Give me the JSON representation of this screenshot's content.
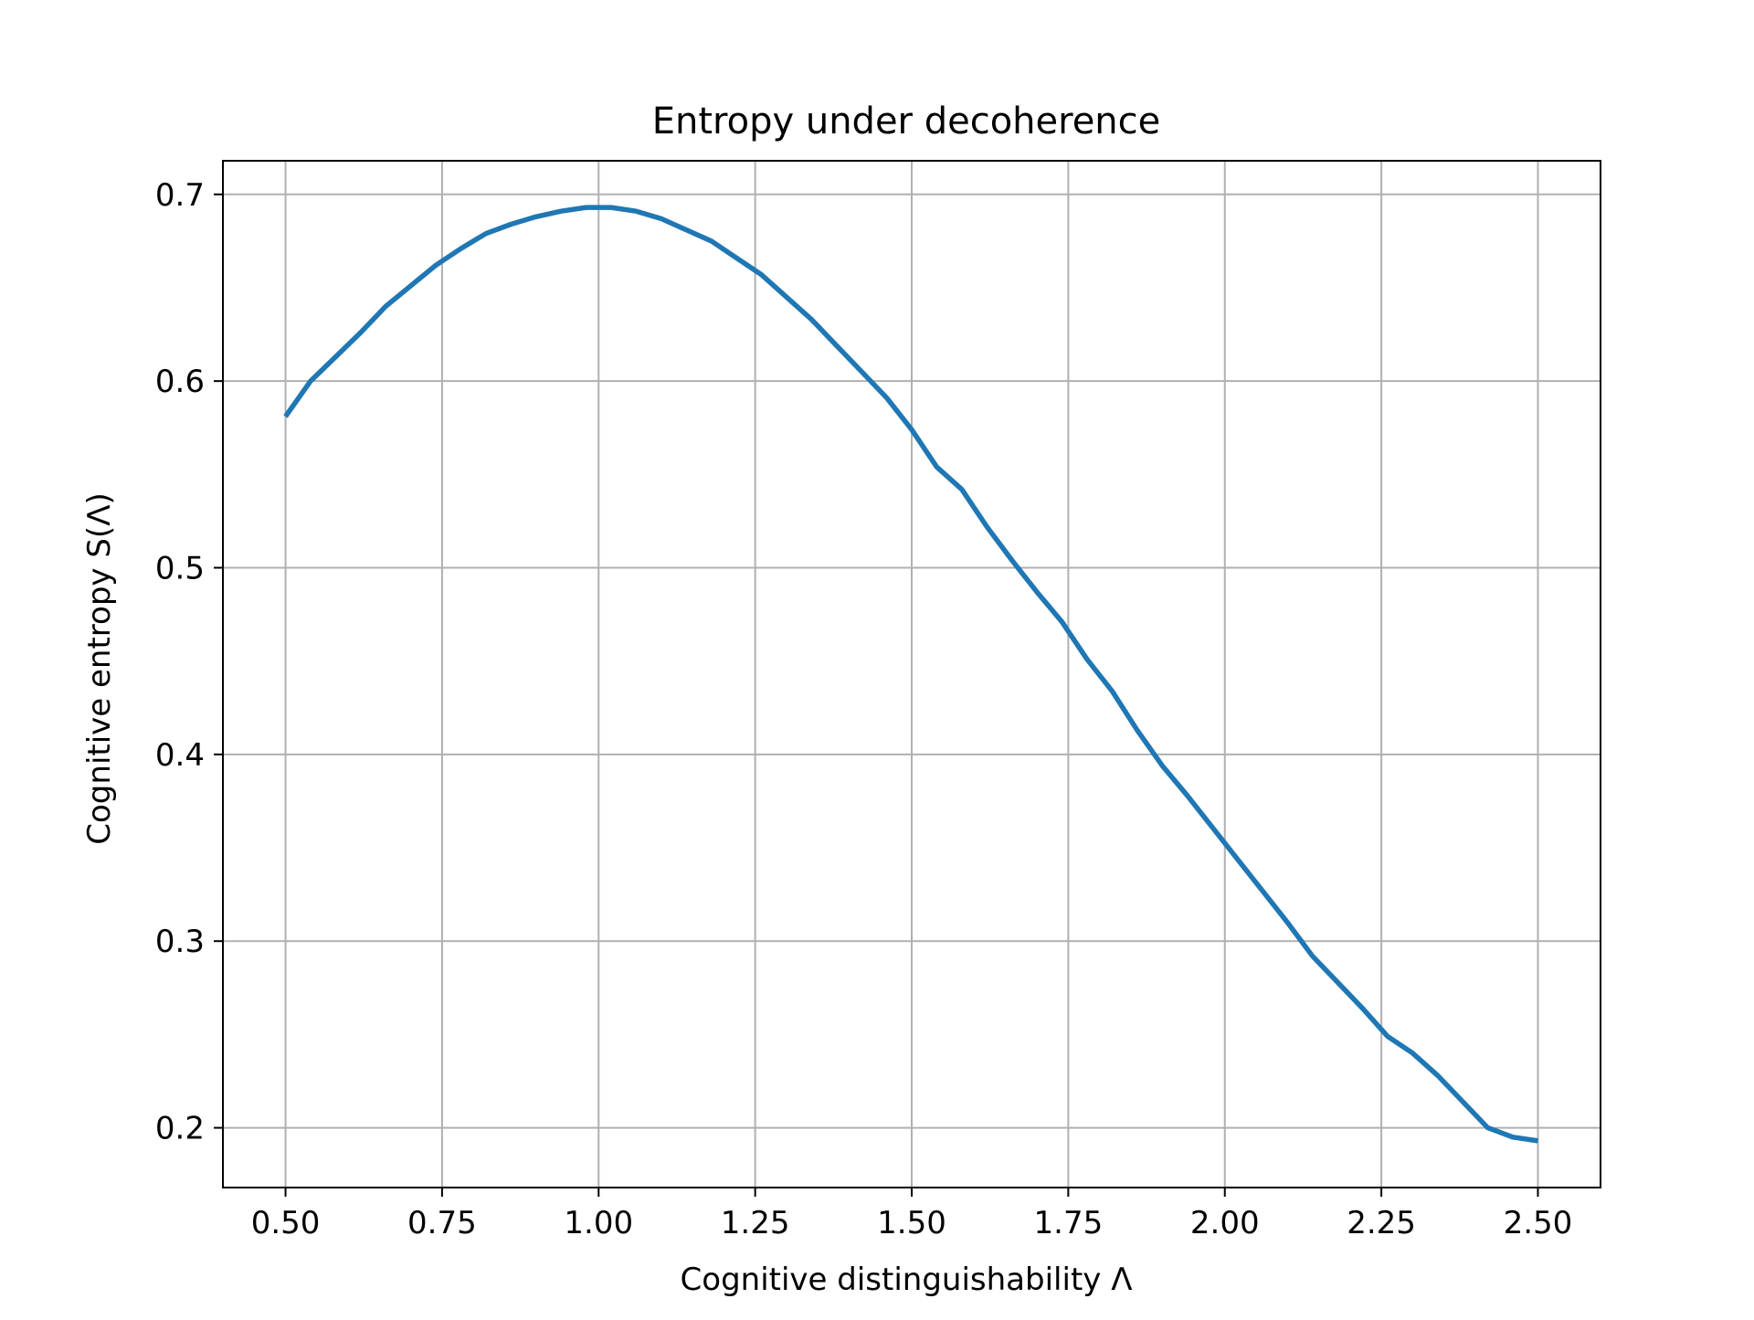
{
  "chart_data": {
    "type": "line",
    "title": "Entropy under decoherence",
    "xlabel": "Cognitive distinguishability Λ",
    "ylabel": "Cognitive entropy S(Λ)",
    "xlim": [
      0.4,
      2.6
    ],
    "ylim": [
      0.168,
      0.718
    ],
    "xticks": [
      0.5,
      0.75,
      1.0,
      1.25,
      1.5,
      1.75,
      2.0,
      2.25,
      2.5
    ],
    "xtick_labels": [
      "0.50",
      "0.75",
      "1.00",
      "1.25",
      "1.50",
      "1.75",
      "2.00",
      "2.25",
      "2.50"
    ],
    "yticks": [
      0.2,
      0.3,
      0.4,
      0.5,
      0.6,
      0.7
    ],
    "ytick_labels": [
      "0.2",
      "0.3",
      "0.4",
      "0.5",
      "0.6",
      "0.7"
    ],
    "grid": true,
    "line_color": "#1f77b4",
    "series": [
      {
        "name": "",
        "x": [
          0.5,
          0.54,
          0.58,
          0.62,
          0.66,
          0.7,
          0.74,
          0.78,
          0.82,
          0.86,
          0.9,
          0.94,
          0.98,
          1.02,
          1.06,
          1.1,
          1.14,
          1.18,
          1.22,
          1.26,
          1.3,
          1.34,
          1.38,
          1.42,
          1.46,
          1.5,
          1.54,
          1.58,
          1.62,
          1.66,
          1.7,
          1.74,
          1.78,
          1.82,
          1.86,
          1.9,
          1.94,
          1.98,
          2.02,
          2.06,
          2.1,
          2.14,
          2.18,
          2.22,
          2.26,
          2.3,
          2.34,
          2.38,
          2.42,
          2.46,
          2.5
        ],
        "values": [
          0.581,
          0.6,
          0.613,
          0.626,
          0.64,
          0.651,
          0.662,
          0.671,
          0.679,
          0.684,
          0.688,
          0.691,
          0.693,
          0.693,
          0.691,
          0.687,
          0.681,
          0.675,
          0.666,
          0.657,
          0.645,
          0.633,
          0.619,
          0.605,
          0.591,
          0.574,
          0.554,
          0.542,
          0.522,
          0.504,
          0.487,
          0.471,
          0.451,
          0.434,
          0.413,
          0.394,
          0.378,
          0.361,
          0.344,
          0.327,
          0.31,
          0.292,
          0.278,
          0.264,
          0.249,
          0.24,
          0.228,
          0.214,
          0.2,
          0.195,
          0.193
        ]
      }
    ]
  }
}
